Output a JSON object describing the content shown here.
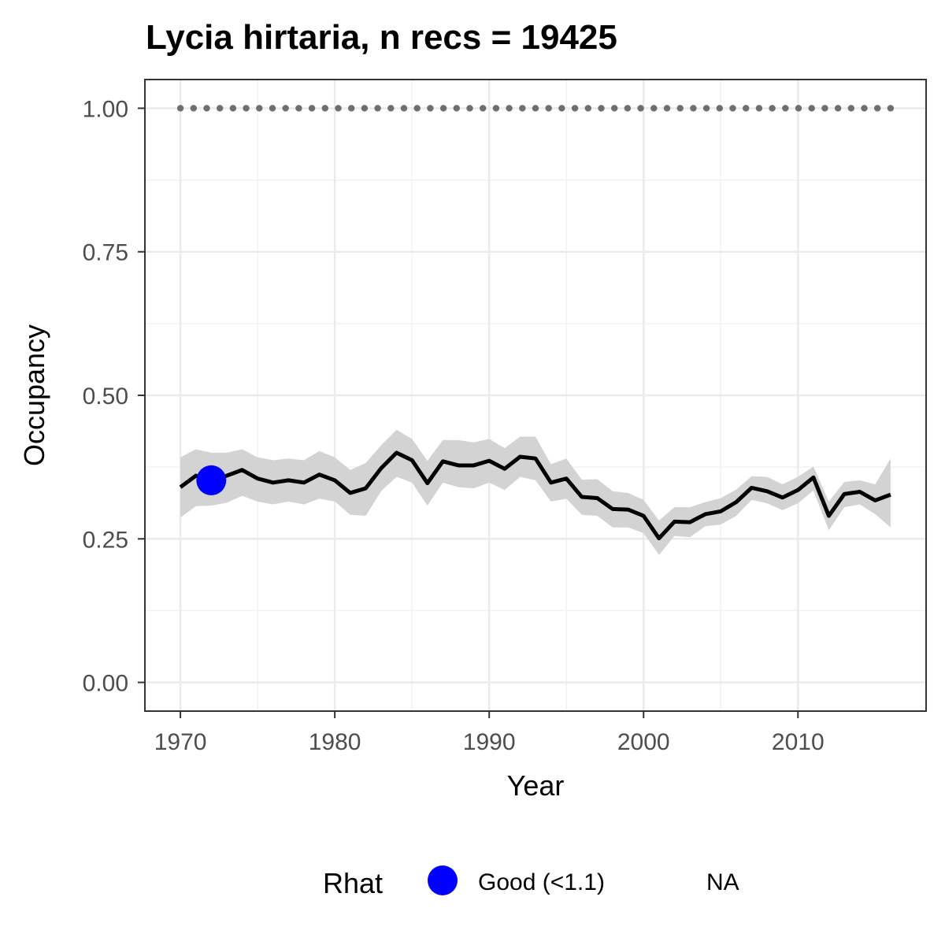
{
  "chart_data": {
    "type": "line",
    "title": "Lycia hirtaria, n recs = 19425",
    "xlabel": "Year",
    "ylabel": "Occupancy",
    "xlim": [
      1967.7,
      2018.3
    ],
    "ylim": [
      -0.05,
      1.05
    ],
    "x_ticks": [
      1970,
      1980,
      1990,
      2000,
      2010
    ],
    "x_tick_labels": [
      "1970",
      "1980",
      "1990",
      "2000",
      "2010"
    ],
    "y_ticks": [
      0,
      0.25,
      0.5,
      0.75,
      1.0
    ],
    "y_tick_labels": [
      "0.00",
      "0.25",
      "0.50",
      "0.75",
      "1.00"
    ],
    "grid": true,
    "years": [
      1970,
      1971,
      1972,
      1973,
      1974,
      1975,
      1976,
      1977,
      1978,
      1979,
      1980,
      1981,
      1982,
      1983,
      1984,
      1985,
      1986,
      1987,
      1988,
      1989,
      1990,
      1991,
      1992,
      1993,
      1994,
      1995,
      1996,
      1997,
      1998,
      1999,
      2000,
      2001,
      2002,
      2003,
      2004,
      2005,
      2006,
      2007,
      2008,
      2009,
      2010,
      2011,
      2012,
      2013,
      2014,
      2015,
      2016
    ],
    "series": [
      {
        "kind": "mean",
        "color": "#000000",
        "values": [
          0.34,
          0.36,
          0.35,
          0.36,
          0.37,
          0.355,
          0.348,
          0.352,
          0.348,
          0.362,
          0.352,
          0.33,
          0.338,
          0.373,
          0.4,
          0.387,
          0.347,
          0.385,
          0.378,
          0.378,
          0.386,
          0.372,
          0.393,
          0.39,
          0.348,
          0.355,
          0.323,
          0.321,
          0.302,
          0.301,
          0.29,
          0.251,
          0.28,
          0.279,
          0.293,
          0.298,
          0.314,
          0.339,
          0.333,
          0.322,
          0.335,
          0.357,
          0.29,
          0.328,
          0.332,
          0.317,
          0.327
        ]
      },
      {
        "kind": "upper_ci",
        "color": "#d3d3d3",
        "values": [
          0.392,
          0.406,
          0.4,
          0.4,
          0.406,
          0.392,
          0.387,
          0.39,
          0.387,
          0.403,
          0.392,
          0.37,
          0.382,
          0.413,
          0.44,
          0.424,
          0.386,
          0.422,
          0.422,
          0.418,
          0.424,
          0.408,
          0.428,
          0.428,
          0.38,
          0.39,
          0.353,
          0.354,
          0.333,
          0.33,
          0.318,
          0.282,
          0.305,
          0.305,
          0.314,
          0.321,
          0.336,
          0.359,
          0.358,
          0.345,
          0.358,
          0.376,
          0.315,
          0.349,
          0.352,
          0.345,
          0.39
        ]
      },
      {
        "kind": "lower_ci",
        "color": "#d3d3d3",
        "values": [
          0.287,
          0.307,
          0.308,
          0.313,
          0.325,
          0.315,
          0.31,
          0.315,
          0.31,
          0.32,
          0.315,
          0.292,
          0.29,
          0.333,
          0.358,
          0.348,
          0.308,
          0.348,
          0.34,
          0.338,
          0.348,
          0.335,
          0.358,
          0.352,
          0.315,
          0.32,
          0.292,
          0.29,
          0.27,
          0.27,
          0.26,
          0.222,
          0.255,
          0.253,
          0.272,
          0.275,
          0.29,
          0.318,
          0.312,
          0.3,
          0.312,
          0.334,
          0.265,
          0.305,
          0.31,
          0.293,
          0.27
        ]
      },
      {
        "kind": "reference",
        "color": "#6e6e6e",
        "marker": "dot",
        "values": [
          1,
          1,
          1,
          1,
          1,
          1,
          1,
          1,
          1,
          1,
          1,
          1,
          1,
          1,
          1,
          1,
          1,
          1,
          1,
          1,
          1,
          1,
          1,
          1,
          1,
          1,
          1,
          1,
          1,
          1,
          1,
          1,
          1,
          1,
          1,
          1,
          1,
          1,
          1,
          1,
          1,
          1,
          1,
          1,
          1,
          1,
          1
        ]
      }
    ],
    "points": [
      {
        "x": 1972,
        "y": 0.352,
        "category": "Good (<1.1)",
        "color": "#0000ff"
      }
    ],
    "legend": {
      "title": "Rhat",
      "position": "bottom",
      "entries": [
        {
          "label": "Good (<1.1)",
          "color": "#0000ff",
          "marker": "circle"
        },
        {
          "label": "NA",
          "color": "",
          "marker": "none"
        }
      ]
    }
  }
}
